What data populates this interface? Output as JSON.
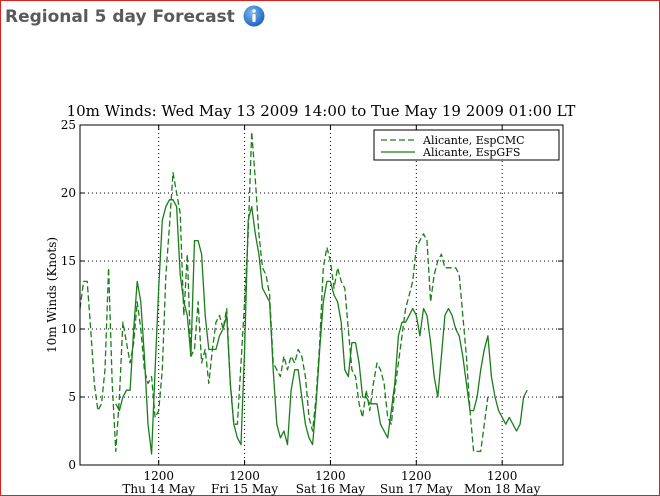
{
  "header": {
    "title": "Regional 5 day Forecast",
    "info_icon": "info-icon"
  },
  "colors": {
    "frame_border": "#e0201a",
    "series": "#1a7d1a",
    "info_icon": "#2f7fd6"
  },
  "chart_data": {
    "type": "line",
    "title": "10m Winds: Wed May 13 2009 14:00 to Tue May 19 2009 01:00 LT",
    "ylabel": "10m Winds (Knots)",
    "xlabel": "",
    "ylim": [
      0,
      25
    ],
    "xlim": [
      14,
      149
    ],
    "yticks": [
      0,
      5,
      10,
      15,
      20,
      25
    ],
    "xticks": [
      {
        "x": 36,
        "label": "1200",
        "day": "Thu 14 May"
      },
      {
        "x": 60,
        "label": "1200",
        "day": "Fri 15 May"
      },
      {
        "x": 84,
        "label": "1200",
        "day": "Sat 16 May"
      },
      {
        "x": 108,
        "label": "1200",
        "day": "Sun 17 May"
      },
      {
        "x": 132,
        "label": "1200",
        "day": "Mon 18 May"
      }
    ],
    "grid": true,
    "legend_position": "top-right",
    "series": [
      {
        "name": "Alicante, EspCMC",
        "style": "dashed",
        "points": [
          [
            14,
            11.5
          ],
          [
            15,
            13.5
          ],
          [
            16,
            13.5
          ],
          [
            17,
            10
          ],
          [
            18,
            6
          ],
          [
            19,
            4
          ],
          [
            20,
            4.5
          ],
          [
            21,
            7
          ],
          [
            22,
            14.5
          ],
          [
            23,
            6
          ],
          [
            24,
            1
          ],
          [
            25,
            5
          ],
          [
            26,
            10.5
          ],
          [
            27,
            9
          ],
          [
            28,
            7.5
          ],
          [
            29,
            9
          ],
          [
            30,
            12
          ],
          [
            31,
            10
          ],
          [
            32,
            7
          ],
          [
            33,
            6
          ],
          [
            34,
            6.5
          ],
          [
            35,
            3.5
          ],
          [
            36,
            4
          ],
          [
            37,
            7
          ],
          [
            38,
            14
          ],
          [
            39,
            17.5
          ],
          [
            40,
            21.5
          ],
          [
            41,
            20
          ],
          [
            42,
            18.5
          ],
          [
            43,
            11
          ],
          [
            44,
            15.5
          ],
          [
            45,
            8
          ],
          [
            46,
            8.5
          ],
          [
            47,
            12
          ],
          [
            48,
            7.5
          ],
          [
            49,
            8.5
          ],
          [
            50,
            6
          ],
          [
            51,
            8.5
          ],
          [
            52,
            10.5
          ],
          [
            53,
            11
          ],
          [
            54,
            10
          ],
          [
            55,
            11.5
          ],
          [
            56,
            6
          ],
          [
            57,
            3
          ],
          [
            58,
            3
          ],
          [
            59,
            7.5
          ],
          [
            60,
            12
          ],
          [
            61,
            17
          ],
          [
            62,
            24.5
          ],
          [
            63,
            21
          ],
          [
            64,
            17
          ],
          [
            65,
            14.5
          ],
          [
            66,
            14
          ],
          [
            67,
            12.5
          ],
          [
            68,
            7.5
          ],
          [
            69,
            7
          ],
          [
            70,
            6.5
          ],
          [
            71,
            8
          ],
          [
            72,
            7
          ],
          [
            73,
            8
          ],
          [
            74,
            7.5
          ],
          [
            75,
            8.5
          ],
          [
            76,
            8
          ],
          [
            77,
            6.5
          ],
          [
            78,
            3.5
          ],
          [
            79,
            2.5
          ],
          [
            80,
            5
          ],
          [
            81,
            9
          ],
          [
            82,
            14.5
          ],
          [
            83,
            16
          ],
          [
            84,
            15
          ],
          [
            85,
            13
          ],
          [
            86,
            14.5
          ],
          [
            87,
            13.5
          ],
          [
            88,
            13
          ],
          [
            89,
            10
          ],
          [
            90,
            7
          ],
          [
            91,
            6.5
          ],
          [
            92,
            4.5
          ],
          [
            93,
            3.5
          ],
          [
            94,
            5.5
          ],
          [
            95,
            4
          ],
          [
            96,
            6
          ],
          [
            97,
            7.5
          ],
          [
            98,
            7
          ],
          [
            99,
            6
          ],
          [
            100,
            3.5
          ],
          [
            101,
            3
          ],
          [
            102,
            5.5
          ],
          [
            103,
            7.5
          ],
          [
            104,
            9.5
          ],
          [
            105,
            11.5
          ],
          [
            106,
            12.5
          ],
          [
            107,
            13.5
          ],
          [
            108,
            16
          ],
          [
            109,
            16.5
          ],
          [
            110,
            17
          ],
          [
            111,
            16.5
          ],
          [
            112,
            12
          ],
          [
            113,
            14
          ],
          [
            114,
            15
          ],
          [
            115,
            15.5
          ],
          [
            116,
            14.5
          ],
          [
            117,
            14.5
          ],
          [
            118,
            14.5
          ],
          [
            119,
            14.5
          ],
          [
            120,
            14
          ],
          [
            121,
            11
          ],
          [
            122,
            8
          ],
          [
            123,
            4
          ],
          [
            124,
            1
          ],
          [
            125,
            1
          ],
          [
            126,
            1
          ],
          [
            127,
            3
          ],
          [
            128,
            5
          ]
        ]
      },
      {
        "name": "Alicante, EspGFS",
        "style": "solid",
        "points": [
          [
            24,
            4.5
          ],
          [
            25,
            4
          ],
          [
            26,
            5
          ],
          [
            27,
            5.5
          ],
          [
            28,
            5.5
          ],
          [
            29,
            10
          ],
          [
            30,
            13.5
          ],
          [
            31,
            12
          ],
          [
            32,
            8
          ],
          [
            33,
            3
          ],
          [
            34,
            0.8
          ],
          [
            35,
            7
          ],
          [
            36,
            13
          ],
          [
            37,
            18
          ],
          [
            38,
            19
          ],
          [
            39,
            19.5
          ],
          [
            40,
            19.5
          ],
          [
            41,
            19
          ],
          [
            42,
            14
          ],
          [
            43,
            12
          ],
          [
            44,
            11
          ],
          [
            45,
            8
          ],
          [
            46,
            16.5
          ],
          [
            47,
            16.5
          ],
          [
            48,
            15.5
          ],
          [
            49,
            11
          ],
          [
            50,
            8.5
          ],
          [
            51,
            8.5
          ],
          [
            52,
            8.5
          ],
          [
            53,
            9.5
          ],
          [
            54,
            10
          ],
          [
            55,
            11
          ],
          [
            56,
            6
          ],
          [
            57,
            3
          ],
          [
            58,
            2
          ],
          [
            59,
            1.5
          ],
          [
            60,
            8.5
          ],
          [
            61,
            18
          ],
          [
            62,
            19
          ],
          [
            63,
            17
          ],
          [
            64,
            15.5
          ],
          [
            65,
            13
          ],
          [
            66,
            12.5
          ],
          [
            67,
            12
          ],
          [
            68,
            7
          ],
          [
            69,
            3
          ],
          [
            70,
            2
          ],
          [
            71,
            2.5
          ],
          [
            72,
            1.5
          ],
          [
            73,
            5.5
          ],
          [
            74,
            7
          ],
          [
            75,
            7
          ],
          [
            76,
            5
          ],
          [
            77,
            3
          ],
          [
            78,
            2
          ],
          [
            79,
            1.5
          ],
          [
            80,
            4.5
          ],
          [
            81,
            8.5
          ],
          [
            82,
            12
          ],
          [
            83,
            13.5
          ],
          [
            84,
            13.5
          ],
          [
            85,
            12.5
          ],
          [
            86,
            12
          ],
          [
            87,
            10.5
          ],
          [
            88,
            7
          ],
          [
            89,
            6.5
          ],
          [
            90,
            9
          ],
          [
            91,
            9
          ],
          [
            92,
            7.5
          ],
          [
            93,
            5
          ],
          [
            94,
            5
          ],
          [
            95,
            4.5
          ],
          [
            96,
            4.5
          ],
          [
            97,
            4.5
          ],
          [
            98,
            3
          ],
          [
            99,
            2.5
          ],
          [
            100,
            2
          ],
          [
            101,
            4
          ],
          [
            102,
            6
          ],
          [
            103,
            9.5
          ],
          [
            104,
            10.5
          ],
          [
            105,
            10.5
          ],
          [
            106,
            11
          ],
          [
            107,
            11.5
          ],
          [
            108,
            11
          ],
          [
            109,
            9.5
          ],
          [
            110,
            11.5
          ],
          [
            111,
            11
          ],
          [
            112,
            9
          ],
          [
            113,
            6.5
          ],
          [
            114,
            5
          ],
          [
            115,
            8
          ],
          [
            116,
            11
          ],
          [
            117,
            11.5
          ],
          [
            118,
            11
          ],
          [
            119,
            10
          ],
          [
            120,
            9.5
          ],
          [
            121,
            8
          ],
          [
            122,
            6
          ],
          [
            123,
            4
          ],
          [
            124,
            4
          ],
          [
            125,
            5
          ],
          [
            126,
            7
          ],
          [
            127,
            8.5
          ],
          [
            128,
            9.5
          ],
          [
            129,
            6.5
          ],
          [
            130,
            5
          ],
          [
            131,
            4
          ],
          [
            132,
            3.5
          ],
          [
            133,
            3
          ],
          [
            134,
            3.5
          ],
          [
            135,
            3
          ],
          [
            136,
            2.5
          ],
          [
            137,
            3
          ],
          [
            138,
            5
          ],
          [
            139,
            5.5
          ]
        ]
      }
    ]
  }
}
